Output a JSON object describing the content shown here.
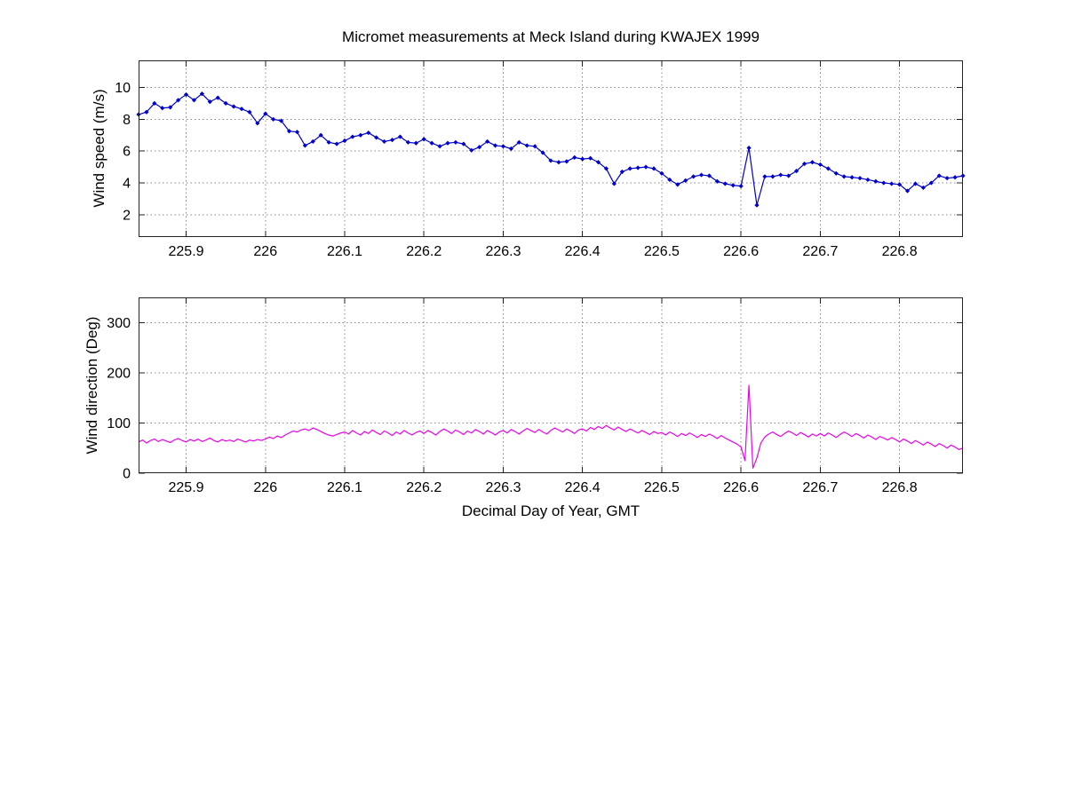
{
  "figure": {
    "title": "Micromet measurements at Meck Island during KWAJEX 1999",
    "xlabel": "Decimal Day of Year, GMT",
    "background": "#ffffff",
    "axis_color": "#222222",
    "grid_color": "#888888"
  },
  "chart_data": [
    {
      "type": "line",
      "name": "wind-speed",
      "ylabel": "Wind speed (m/s)",
      "line_color": "#0000cc",
      "marker": "diamond",
      "grid": true,
      "legend": "none",
      "xlim": [
        225.84,
        226.88
      ],
      "ylim": [
        0.6,
        11.7
      ],
      "xticks": [
        225.9,
        226.0,
        226.1,
        226.2,
        226.3,
        226.4,
        226.5,
        226.6,
        226.7,
        226.8
      ],
      "xtick_labels": [
        "225.9",
        "226",
        "226.1",
        "226.2",
        "226.3",
        "226.4",
        "226.5",
        "226.6",
        "226.7",
        "226.8"
      ],
      "yticks": [
        2,
        4,
        6,
        8,
        10
      ],
      "ytick_labels": [
        "2",
        "4",
        "6",
        "8",
        "10"
      ],
      "x_start": 225.84,
      "x_step": 0.01,
      "values": [
        8.3,
        8.45,
        9.0,
        8.7,
        8.75,
        9.2,
        9.55,
        9.2,
        9.6,
        9.1,
        9.35,
        9.0,
        8.8,
        8.65,
        8.45,
        7.75,
        8.35,
        8.0,
        7.9,
        7.25,
        7.2,
        6.35,
        6.6,
        7.0,
        6.55,
        6.45,
        6.65,
        6.9,
        7.0,
        7.15,
        6.85,
        6.6,
        6.7,
        6.9,
        6.55,
        6.5,
        6.75,
        6.5,
        6.3,
        6.5,
        6.55,
        6.45,
        6.05,
        6.25,
        6.6,
        6.35,
        6.3,
        6.15,
        6.55,
        6.35,
        6.3,
        5.9,
        5.4,
        5.3,
        5.35,
        5.6,
        5.5,
        5.55,
        5.3,
        4.9,
        3.95,
        4.7,
        4.9,
        4.95,
        5.0,
        4.9,
        4.6,
        4.2,
        3.9,
        4.15,
        4.4,
        4.5,
        4.45,
        4.1,
        3.95,
        3.85,
        3.8,
        6.2,
        2.6,
        4.4,
        4.4,
        4.5,
        4.45,
        4.75,
        5.2,
        5.3,
        5.15,
        4.9,
        4.6,
        4.4,
        4.35,
        4.3,
        4.2,
        4.1,
        4.0,
        3.95,
        3.9,
        3.5,
        3.95,
        3.7,
        4.0,
        4.45,
        4.3,
        4.35,
        4.45
      ]
    },
    {
      "type": "line",
      "name": "wind-direction",
      "ylabel": "Wind direction (Deg)",
      "line_color": "#ee00ee",
      "marker": "none",
      "grid": true,
      "legend": "none",
      "xlim": [
        225.84,
        226.88
      ],
      "ylim": [
        0,
        350
      ],
      "xticks": [
        225.9,
        226.0,
        226.1,
        226.2,
        226.3,
        226.4,
        226.5,
        226.6,
        226.7,
        226.8
      ],
      "xtick_labels": [
        "225.9",
        "226",
        "226.1",
        "226.2",
        "226.3",
        "226.4",
        "226.5",
        "226.6",
        "226.7",
        "226.8"
      ],
      "yticks": [
        0,
        100,
        200,
        300
      ],
      "ytick_labels": [
        "0",
        "100",
        "200",
        "300"
      ],
      "x_start": 225.84,
      "x_step": 0.005,
      "values": [
        62,
        66,
        60,
        65,
        68,
        63,
        67,
        64,
        61,
        66,
        69,
        65,
        62,
        67,
        64,
        68,
        63,
        66,
        70,
        65,
        62,
        67,
        64,
        66,
        63,
        68,
        65,
        62,
        66,
        64,
        67,
        65,
        68,
        72,
        69,
        74,
        71,
        76,
        80,
        84,
        82,
        86,
        88,
        85,
        90,
        87,
        83,
        79,
        76,
        74,
        77,
        80,
        82,
        78,
        85,
        80,
        76,
        83,
        79,
        86,
        81,
        77,
        84,
        80,
        75,
        82,
        78,
        85,
        80,
        76,
        81,
        84,
        79,
        85,
        81,
        76,
        83,
        88,
        84,
        79,
        86,
        82,
        77,
        84,
        80,
        87,
        83,
        78,
        85,
        81,
        76,
        82,
        85,
        80,
        87,
        83,
        78,
        84,
        89,
        85,
        81,
        87,
        82,
        78,
        85,
        90,
        86,
        82,
        88,
        84,
        79,
        86,
        88,
        84,
        91,
        87,
        93,
        89,
        95,
        90,
        86,
        92,
        87,
        83,
        88,
        84,
        80,
        85,
        81,
        77,
        83,
        79,
        81,
        76,
        82,
        78,
        73,
        79,
        75,
        80,
        76,
        71,
        77,
        73,
        78,
        74,
        69,
        75,
        70,
        66,
        62,
        58,
        52,
        25,
        175,
        10,
        30,
        60,
        72,
        78,
        82,
        77,
        73,
        79,
        84,
        80,
        75,
        81,
        77,
        72,
        78,
        74,
        79,
        74,
        80,
        76,
        71,
        77,
        82,
        78,
        73,
        79,
        75,
        70,
        76,
        72,
        67,
        73,
        70,
        66,
        71,
        67,
        62,
        68,
        64,
        59,
        65,
        61,
        56,
        62,
        58,
        53,
        59,
        55,
        50,
        56,
        52,
        47,
        50
      ]
    }
  ]
}
